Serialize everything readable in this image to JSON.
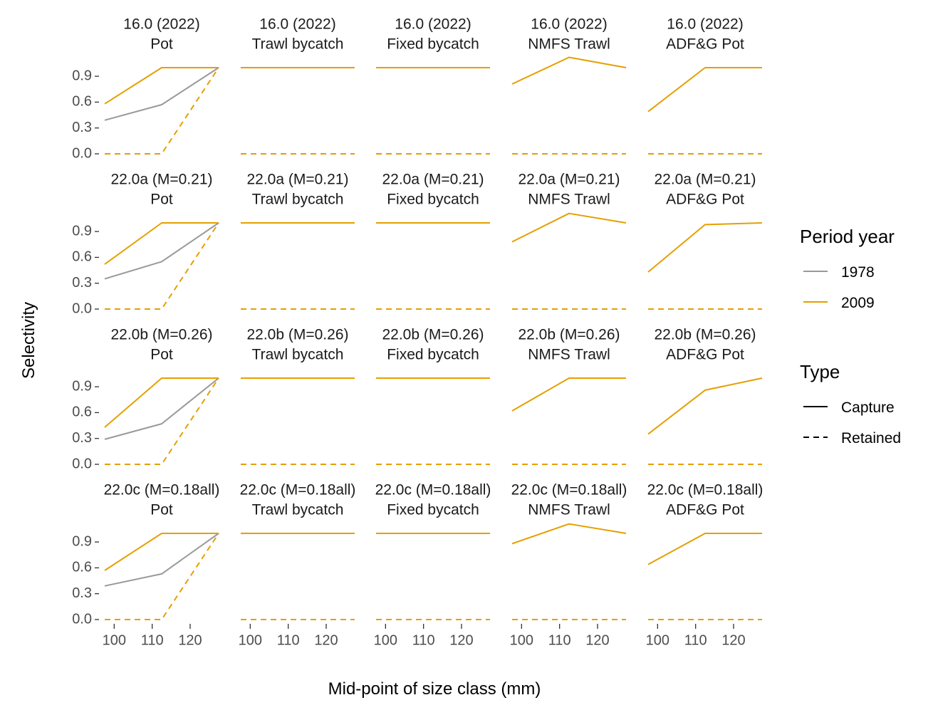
{
  "chart_data": {
    "type": "line",
    "xlabel": "Mid-point of size class (mm)",
    "ylabel": "Selectivity",
    "xlim": [
      97.5,
      127.5
    ],
    "ylim": [
      0,
      1.0
    ],
    "x_ticks": [
      100,
      110,
      120
    ],
    "y_ticks": [
      0.0,
      0.3,
      0.6,
      0.9
    ],
    "y_tick_labels": [
      "0.0",
      "0.3",
      "0.6",
      "0.9"
    ],
    "x": [
      97.5,
      112.5,
      127.5
    ],
    "colors": {
      "1978": "#999999",
      "2009": "#E69F00"
    },
    "legend": {
      "period_title": "Period year",
      "period_items": [
        "1978",
        "2009"
      ],
      "type_title": "Type",
      "type_items": [
        "Capture",
        "Retained"
      ],
      "placement": "right"
    },
    "rows": [
      {
        "model": "16.0 (2022)"
      },
      {
        "model": "22.0a (M=0.21)"
      },
      {
        "model": "22.0b (M=0.26)"
      },
      {
        "model": "22.0c (M=0.18all)"
      }
    ],
    "cols": [
      "Pot",
      "Trawl bycatch",
      "Fixed bycatch",
      "NMFS Trawl",
      "ADF&G Pot"
    ],
    "panels": [
      [
        {
          "series": [
            {
              "year": "1978",
              "type": "Capture",
              "values": [
                0.39,
                0.57,
                1.0
              ]
            },
            {
              "year": "2009",
              "type": "Capture",
              "values": [
                0.58,
                1.0,
                1.0
              ]
            },
            {
              "year": "2009",
              "type": "Retained",
              "values": [
                0.0,
                0.0,
                1.0
              ]
            }
          ]
        },
        {
          "series": [
            {
              "year": "2009",
              "type": "Capture",
              "values": [
                1.0,
                1.0,
                1.0
              ]
            },
            {
              "year": "2009",
              "type": "Retained",
              "values": [
                0.0,
                0.0,
                0.0
              ]
            }
          ]
        },
        {
          "series": [
            {
              "year": "2009",
              "type": "Capture",
              "values": [
                1.0,
                1.0,
                1.0
              ]
            },
            {
              "year": "2009",
              "type": "Retained",
              "values": [
                0.0,
                0.0,
                0.0
              ]
            }
          ]
        },
        {
          "series": [
            {
              "year": "2009",
              "type": "Capture",
              "values": [
                0.81,
                1.12,
                1.0
              ]
            },
            {
              "year": "2009",
              "type": "Retained",
              "values": [
                0.0,
                0.0,
                0.0
              ]
            }
          ]
        },
        {
          "series": [
            {
              "year": "2009",
              "type": "Capture",
              "values": [
                0.49,
                1.0,
                1.0
              ]
            },
            {
              "year": "2009",
              "type": "Retained",
              "values": [
                0.0,
                0.0,
                0.0
              ]
            }
          ]
        }
      ],
      [
        {
          "series": [
            {
              "year": "1978",
              "type": "Capture",
              "values": [
                0.35,
                0.55,
                1.0
              ]
            },
            {
              "year": "2009",
              "type": "Capture",
              "values": [
                0.52,
                1.0,
                1.0
              ]
            },
            {
              "year": "2009",
              "type": "Retained",
              "values": [
                0.0,
                0.0,
                1.0
              ]
            }
          ]
        },
        {
          "series": [
            {
              "year": "2009",
              "type": "Capture",
              "values": [
                1.0,
                1.0,
                1.0
              ]
            },
            {
              "year": "2009",
              "type": "Retained",
              "values": [
                0.0,
                0.0,
                0.0
              ]
            }
          ]
        },
        {
          "series": [
            {
              "year": "2009",
              "type": "Capture",
              "values": [
                1.0,
                1.0,
                1.0
              ]
            },
            {
              "year": "2009",
              "type": "Retained",
              "values": [
                0.0,
                0.0,
                0.0
              ]
            }
          ]
        },
        {
          "series": [
            {
              "year": "2009",
              "type": "Capture",
              "values": [
                0.78,
                1.11,
                1.0
              ]
            },
            {
              "year": "2009",
              "type": "Retained",
              "values": [
                0.0,
                0.0,
                0.0
              ]
            }
          ]
        },
        {
          "series": [
            {
              "year": "2009",
              "type": "Capture",
              "values": [
                0.43,
                0.98,
                1.0
              ]
            },
            {
              "year": "2009",
              "type": "Retained",
              "values": [
                0.0,
                0.0,
                0.0
              ]
            }
          ]
        }
      ],
      [
        {
          "series": [
            {
              "year": "1978",
              "type": "Capture",
              "values": [
                0.29,
                0.47,
                1.0
              ]
            },
            {
              "year": "2009",
              "type": "Capture",
              "values": [
                0.43,
                1.0,
                1.0
              ]
            },
            {
              "year": "2009",
              "type": "Retained",
              "values": [
                0.0,
                0.0,
                1.0
              ]
            }
          ]
        },
        {
          "series": [
            {
              "year": "2009",
              "type": "Capture",
              "values": [
                1.0,
                1.0,
                1.0
              ]
            },
            {
              "year": "2009",
              "type": "Retained",
              "values": [
                0.0,
                0.0,
                0.0
              ]
            }
          ]
        },
        {
          "series": [
            {
              "year": "2009",
              "type": "Capture",
              "values": [
                1.0,
                1.0,
                1.0
              ]
            },
            {
              "year": "2009",
              "type": "Retained",
              "values": [
                0.0,
                0.0,
                0.0
              ]
            }
          ]
        },
        {
          "series": [
            {
              "year": "2009",
              "type": "Capture",
              "values": [
                0.62,
                1.0,
                1.0
              ]
            },
            {
              "year": "2009",
              "type": "Retained",
              "values": [
                0.0,
                0.0,
                0.0
              ]
            }
          ]
        },
        {
          "series": [
            {
              "year": "2009",
              "type": "Capture",
              "values": [
                0.35,
                0.86,
                1.0
              ]
            },
            {
              "year": "2009",
              "type": "Retained",
              "values": [
                0.0,
                0.0,
                0.0
              ]
            }
          ]
        }
      ],
      [
        {
          "series": [
            {
              "year": "1978",
              "type": "Capture",
              "values": [
                0.39,
                0.53,
                1.0
              ]
            },
            {
              "year": "2009",
              "type": "Capture",
              "values": [
                0.57,
                1.0,
                1.0
              ]
            },
            {
              "year": "2009",
              "type": "Retained",
              "values": [
                0.0,
                0.0,
                1.0
              ]
            }
          ]
        },
        {
          "series": [
            {
              "year": "2009",
              "type": "Capture",
              "values": [
                1.0,
                1.0,
                1.0
              ]
            },
            {
              "year": "2009",
              "type": "Retained",
              "values": [
                0.0,
                0.0,
                0.0
              ]
            }
          ]
        },
        {
          "series": [
            {
              "year": "2009",
              "type": "Capture",
              "values": [
                1.0,
                1.0,
                1.0
              ]
            },
            {
              "year": "2009",
              "type": "Retained",
              "values": [
                0.0,
                0.0,
                0.0
              ]
            }
          ]
        },
        {
          "series": [
            {
              "year": "2009",
              "type": "Capture",
              "values": [
                0.88,
                1.11,
                1.0
              ]
            },
            {
              "year": "2009",
              "type": "Retained",
              "values": [
                0.0,
                0.0,
                0.0
              ]
            }
          ]
        },
        {
          "series": [
            {
              "year": "2009",
              "type": "Capture",
              "values": [
                0.64,
                1.0,
                1.0
              ]
            },
            {
              "year": "2009",
              "type": "Retained",
              "values": [
                0.0,
                0.0,
                0.0
              ]
            }
          ]
        }
      ]
    ]
  }
}
